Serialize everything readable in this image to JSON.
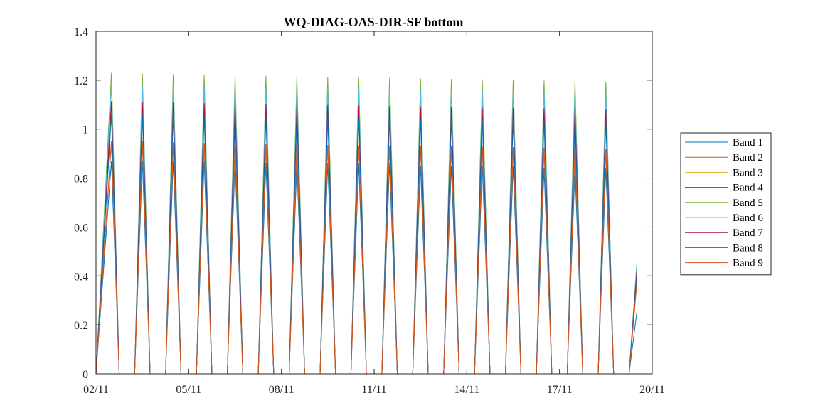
{
  "chart_data": {
    "type": "line",
    "title": "WQ-DIAG-OAS-DIR-SF bottom",
    "xlabel": "",
    "ylabel": "",
    "x_ticks": [
      "02/11",
      "05/11",
      "08/11",
      "11/11",
      "14/11",
      "17/11",
      "20/11"
    ],
    "y_ticks": [
      "0",
      "0.2",
      "0.4",
      "0.6",
      "0.8",
      "1",
      "1.2",
      "1.4"
    ],
    "xlim": [
      "2023-11-02",
      "2023-11-20"
    ],
    "ylim": [
      0,
      1.4
    ],
    "grid": false,
    "legend_position": "right",
    "x": [
      "2023-11-02 00:00",
      "2023-11-02 12:00",
      "2023-11-02 18:00",
      "2023-11-03 00:00",
      "2023-11-03 06:00",
      "2023-11-03 12:00",
      "2023-11-03 18:00",
      "2023-11-04 00:00",
      "2023-11-04 06:00",
      "2023-11-04 12:00",
      "2023-11-04 18:00",
      "2023-11-05 00:00",
      "2023-11-05 06:00",
      "2023-11-05 12:00",
      "2023-11-05 18:00",
      "2023-11-06 00:00",
      "2023-11-06 06:00",
      "2023-11-06 12:00",
      "2023-11-06 18:00",
      "2023-11-07 00:00",
      "2023-11-07 06:00",
      "2023-11-07 12:00",
      "2023-11-07 18:00",
      "2023-11-08 00:00",
      "2023-11-08 06:00",
      "2023-11-08 12:00",
      "2023-11-08 18:00",
      "2023-11-09 00:00",
      "2023-11-09 06:00",
      "2023-11-09 12:00",
      "2023-11-09 18:00",
      "2023-11-10 00:00",
      "2023-11-10 06:00",
      "2023-11-10 12:00",
      "2023-11-10 18:00",
      "2023-11-11 00:00",
      "2023-11-11 06:00",
      "2023-11-11 12:00",
      "2023-11-11 18:00",
      "2023-11-12 00:00",
      "2023-11-12 06:00",
      "2023-11-12 12:00",
      "2023-11-12 18:00",
      "2023-11-13 00:00",
      "2023-11-13 06:00",
      "2023-11-13 12:00",
      "2023-11-13 18:00",
      "2023-11-14 00:00",
      "2023-11-14 06:00",
      "2023-11-14 12:00",
      "2023-11-14 18:00",
      "2023-11-15 00:00",
      "2023-11-15 06:00",
      "2023-11-15 12:00",
      "2023-11-15 18:00",
      "2023-11-16 00:00",
      "2023-11-16 06:00",
      "2023-11-16 12:00",
      "2023-11-16 18:00",
      "2023-11-17 00:00",
      "2023-11-17 06:00",
      "2023-11-17 12:00",
      "2023-11-17 18:00",
      "2023-11-18 00:00",
      "2023-11-18 06:00",
      "2023-11-18 12:00",
      "2023-11-18 18:00",
      "2023-11-19 00:00",
      "2023-11-19 06:00",
      "2023-11-19 12:00"
    ],
    "series": [
      {
        "name": "Band 1",
        "color": "#0072BD",
        "values": [
          0,
          0.87,
          0,
          0,
          0,
          0.87,
          0,
          0,
          0,
          0.87,
          0,
          0,
          0,
          0.87,
          0,
          0,
          0,
          0.87,
          0,
          0,
          0,
          0.86,
          0,
          0,
          0,
          0.86,
          0,
          0,
          0,
          0.86,
          0,
          0,
          0,
          0.86,
          0,
          0,
          0,
          0.86,
          0,
          0,
          0,
          0.85,
          0,
          0,
          0,
          0.85,
          0,
          0,
          0,
          0.85,
          0,
          0,
          0,
          0.85,
          0,
          0,
          0,
          0.84,
          0,
          0,
          0,
          0.84,
          0,
          0,
          0,
          0.84,
          0,
          0,
          0,
          0.25
        ]
      },
      {
        "name": "Band 2",
        "color": "#D95319",
        "values": [
          0,
          0.95,
          0,
          0,
          0,
          0.95,
          0,
          0,
          0,
          0.945,
          0,
          0,
          0,
          0.943,
          0,
          0,
          0,
          0.941,
          0,
          0,
          0,
          0.939,
          0,
          0,
          0,
          0.937,
          0,
          0,
          0,
          0.935,
          0,
          0,
          0,
          0.933,
          0,
          0,
          0,
          0.932,
          0,
          0,
          0,
          0.931,
          0,
          0,
          0,
          0.93,
          0,
          0,
          0,
          0.928,
          0,
          0,
          0,
          0.926,
          0,
          0,
          0,
          0.925,
          0,
          0,
          0,
          0.923,
          0,
          0,
          0,
          0.92,
          0,
          0,
          0,
          0.37
        ]
      },
      {
        "name": "Band 3",
        "color": "#EDB120",
        "values": [
          0,
          0.95,
          0,
          0,
          0,
          0.95,
          0,
          0,
          0,
          0.945,
          0,
          0,
          0,
          0.943,
          0,
          0,
          0,
          0.941,
          0,
          0,
          0,
          0.939,
          0,
          0,
          0,
          0.937,
          0,
          0,
          0,
          0.935,
          0,
          0,
          0,
          0.933,
          0,
          0,
          0,
          0.932,
          0,
          0,
          0,
          0.931,
          0,
          0,
          0,
          0.93,
          0,
          0,
          0,
          0.928,
          0,
          0,
          0,
          0.926,
          0,
          0,
          0,
          0.925,
          0,
          0,
          0,
          0.923,
          0,
          0,
          0,
          0.92,
          0,
          0,
          0,
          0.37
        ]
      },
      {
        "name": "Band 4",
        "color": "#7E2F8E",
        "values": [
          0,
          1.11,
          0,
          0,
          0,
          1.11,
          0,
          0,
          0,
          1.105,
          0,
          0,
          0,
          1.104,
          0,
          0,
          0,
          1.102,
          0,
          0,
          0,
          1.1,
          0,
          0,
          0,
          1.099,
          0,
          0,
          0,
          1.097,
          0,
          0,
          0,
          1.095,
          0,
          0,
          0,
          1.093,
          0,
          0,
          0,
          1.091,
          0,
          0,
          0,
          1.09,
          0,
          0,
          0,
          1.088,
          0,
          0,
          0,
          1.086,
          0,
          0,
          0,
          1.084,
          0,
          0,
          0,
          1.082,
          0,
          0,
          0,
          1.08,
          0,
          0,
          0,
          0.43
        ]
      },
      {
        "name": "Band 5",
        "color": "#77AC30",
        "values": [
          0,
          1.23,
          0,
          0,
          0,
          1.227,
          0,
          0,
          0,
          1.224,
          0,
          0,
          0,
          1.222,
          0,
          0,
          0,
          1.22,
          0,
          0,
          0,
          1.218,
          0,
          0,
          0,
          1.216,
          0,
          0,
          0,
          1.213,
          0,
          0,
          0,
          1.211,
          0,
          0,
          0,
          1.209,
          0,
          0,
          0,
          1.207,
          0,
          0,
          0,
          1.205,
          0,
          0,
          0,
          1.203,
          0,
          0,
          0,
          1.2,
          0,
          0,
          0,
          1.198,
          0,
          0,
          0,
          1.196,
          0,
          0,
          0,
          1.193,
          0,
          0,
          0,
          0.45
        ]
      },
      {
        "name": "Band 6",
        "color": "#4DBEEE",
        "values": [
          0,
          1.18,
          0,
          0,
          0,
          1.18,
          0,
          0,
          0,
          1.178,
          0,
          0,
          0,
          1.176,
          0,
          0,
          0,
          1.174,
          0,
          0,
          0,
          1.172,
          0,
          0,
          0,
          1.17,
          0,
          0,
          0,
          1.168,
          0,
          0,
          0,
          1.166,
          0,
          0,
          0,
          1.164,
          0,
          0,
          0,
          1.162,
          0,
          0,
          0,
          1.16,
          0,
          0,
          0,
          1.158,
          0,
          0,
          0,
          1.156,
          0,
          0,
          0,
          1.154,
          0,
          0,
          0,
          1.152,
          0,
          0,
          0,
          1.15,
          0,
          0,
          0,
          0.44
        ]
      },
      {
        "name": "Band 7",
        "color": "#A2142F",
        "values": [
          0,
          1.115,
          0,
          0,
          0,
          1.112,
          0,
          0,
          0,
          1.109,
          0,
          0,
          0,
          1.107,
          0,
          0,
          0,
          1.105,
          0,
          0,
          0,
          1.103,
          0,
          0,
          0,
          1.101,
          0,
          0,
          0,
          1.099,
          0,
          0,
          0,
          1.097,
          0,
          0,
          0,
          1.095,
          0,
          0,
          0,
          1.093,
          0,
          0,
          0,
          1.091,
          0,
          0,
          0,
          1.089,
          0,
          0,
          0,
          1.087,
          0,
          0,
          0,
          1.085,
          0,
          0,
          0,
          1.083,
          0,
          0,
          0,
          1.081,
          0,
          0,
          0,
          0.42
        ]
      },
      {
        "name": "Band 8",
        "color": "#0072BD",
        "values": [
          0,
          1.06,
          0,
          0,
          0,
          1.06,
          0,
          0,
          0,
          1.058,
          0,
          0,
          0,
          1.056,
          0,
          0,
          0,
          1.054,
          0,
          0,
          0,
          1.052,
          0,
          0,
          0,
          1.05,
          0,
          0,
          0,
          1.048,
          0,
          0,
          0,
          1.046,
          0,
          0,
          0,
          1.044,
          0,
          0,
          0,
          1.042,
          0,
          0,
          0,
          1.04,
          0,
          0,
          0,
          1.038,
          0,
          0,
          0,
          1.036,
          0,
          0,
          0,
          1.034,
          0,
          0,
          0,
          1.032,
          0,
          0,
          0,
          1.03,
          0,
          0,
          0,
          0.4
        ]
      },
      {
        "name": "Band 9",
        "color": "#D95319",
        "values": [
          0,
          0.95,
          0,
          0,
          0,
          0.95,
          0,
          0,
          0,
          0.945,
          0,
          0,
          0,
          0.943,
          0,
          0,
          0,
          0.941,
          0,
          0,
          0,
          0.939,
          0,
          0,
          0,
          0.937,
          0,
          0,
          0,
          0.935,
          0,
          0,
          0,
          0.933,
          0,
          0,
          0,
          0.932,
          0,
          0,
          0,
          0.931,
          0,
          0,
          0,
          0.93,
          0,
          0,
          0,
          0.928,
          0,
          0,
          0,
          0.926,
          0,
          0,
          0,
          0.925,
          0,
          0,
          0,
          0.923,
          0,
          0,
          0,
          0.92,
          0,
          0,
          0,
          0.37
        ]
      }
    ]
  }
}
